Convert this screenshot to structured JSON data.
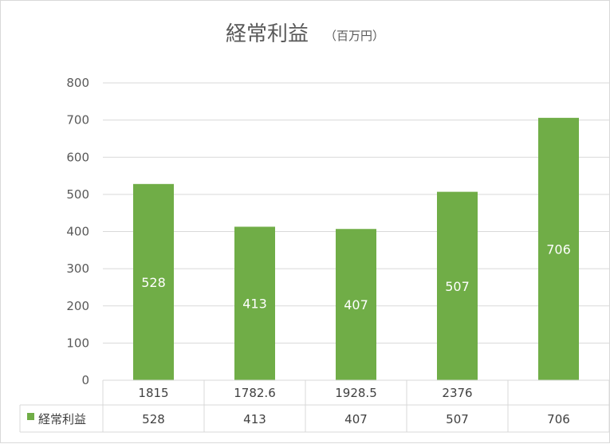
{
  "chart_data": {
    "type": "bar",
    "title": "経常利益",
    "subtitle": "（百万円）",
    "categories": [
      "1815",
      "1782.6",
      "1928.5",
      "2376",
      ""
    ],
    "series": [
      {
        "name": "経常利益",
        "values": [
          528,
          413,
          407,
          507,
          706
        ],
        "color": "#70ad47"
      }
    ],
    "ylim": [
      0,
      800
    ],
    "yticks": [
      0,
      100,
      200,
      300,
      400,
      500,
      600,
      700,
      800
    ],
    "grid": true,
    "data_table": true
  }
}
